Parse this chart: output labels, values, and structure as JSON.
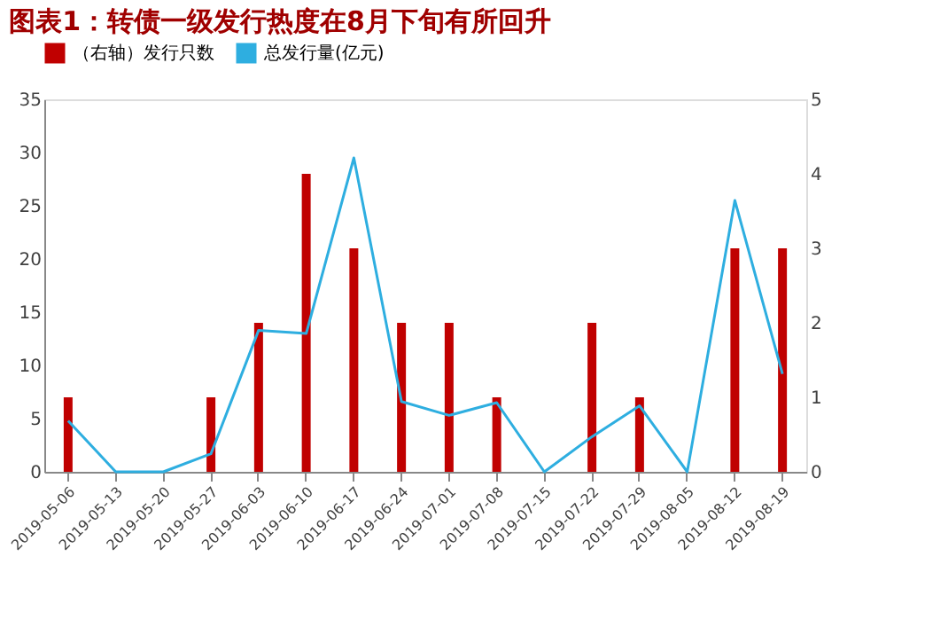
{
  "chart_data": {
    "type": "bar",
    "title": "图表1：转债一级发行热度在8月下旬有所回升",
    "categories": [
      "2019-05-06",
      "2019-05-13",
      "2019-05-20",
      "2019-05-27",
      "2019-06-03",
      "2019-06-10",
      "2019-06-17",
      "2019-06-24",
      "2019-07-01",
      "2019-07-08",
      "2019-07-15",
      "2019-07-22",
      "2019-07-29",
      "2019-08-05",
      "2019-08-12",
      "2019-08-19"
    ],
    "series": [
      {
        "name": "（右轴）发行只数",
        "axis": "y2",
        "color": "#c00000",
        "values": [
          1,
          0,
          0,
          1,
          2,
          4,
          3,
          2,
          2,
          1,
          0,
          2,
          1,
          0,
          3,
          3
        ]
      },
      {
        "name": "总发行量(亿元)",
        "type": "line",
        "color": "#2eaee0",
        "values": [
          4.8,
          0,
          0,
          1.7,
          13.3,
          13,
          29.5,
          6.6,
          5.3,
          6.5,
          0,
          3.3,
          6.2,
          0,
          25.5,
          9.2
        ]
      }
    ],
    "ylim": [
      0,
      35
    ],
    "yticks": [
      0,
      5,
      10,
      15,
      20,
      25,
      30,
      35
    ],
    "y2lim": [
      0,
      5
    ],
    "y2ticks": [
      0,
      1,
      2,
      3,
      4,
      5
    ],
    "legend": "top",
    "grid": false
  }
}
